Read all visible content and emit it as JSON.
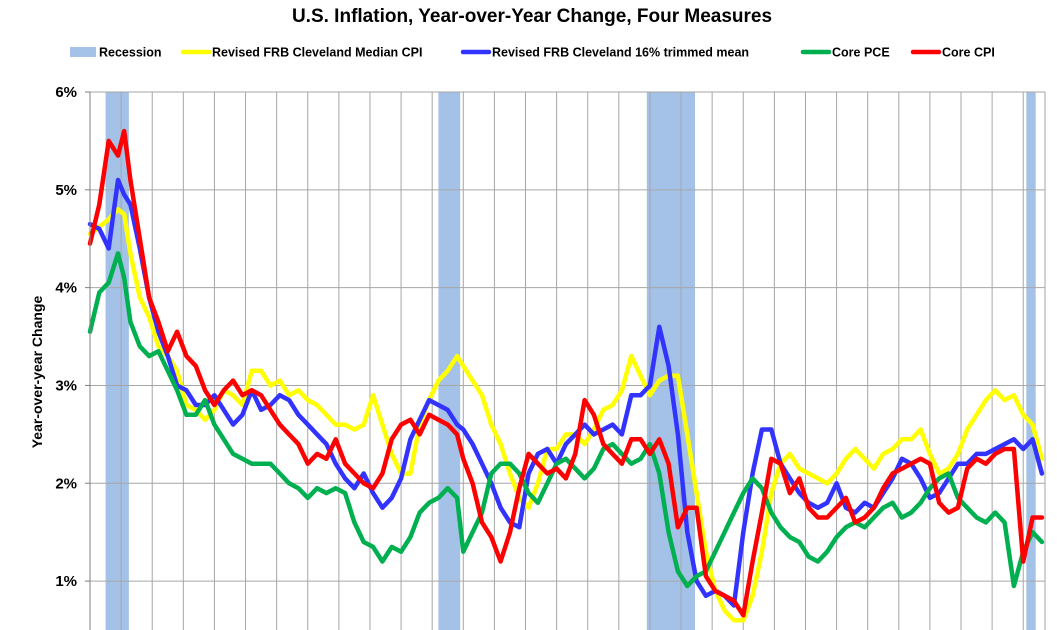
{
  "chart_data": {
    "type": "line",
    "title": "U.S. Inflation, Year-over-Year Change, Four Measures",
    "xlabel": "",
    "ylabel": "Year-over-year Change",
    "ylim": [
      0.5,
      6
    ],
    "xlim": [
      1990,
      2020.7
    ],
    "grid": true,
    "y_ticks": [
      1,
      2,
      3,
      4,
      5,
      6
    ],
    "y_tick_labels": [
      "1%",
      "2%",
      "3%",
      "4%",
      "5%",
      "6%"
    ],
    "x_grid_years": [
      1991,
      1992,
      1993,
      1994,
      1995,
      1996,
      1997,
      1998,
      1999,
      2000,
      2001,
      2002,
      2003,
      2004,
      2005,
      2006,
      2007,
      2008,
      2009,
      2010,
      2011,
      2012,
      2013,
      2014,
      2015,
      2016,
      2017,
      2018,
      2019,
      2020
    ],
    "recessions": [
      {
        "start": 1990.5,
        "end": 1991.25
      },
      {
        "start": 2001.2,
        "end": 2001.9
      },
      {
        "start": 2007.9,
        "end": 2009.45
      },
      {
        "start": 2020.1,
        "end": 2020.4
      }
    ],
    "legend": {
      "position": "top",
      "entries": [
        {
          "label": "Recession",
          "color": "#a4c2e8",
          "kind": "box"
        },
        {
          "label": "Revised FRB Cleveland Median CPI",
          "color": "#ffff00",
          "kind": "line"
        },
        {
          "label": "Revised FRB Cleveland 16% trimmed mean",
          "color": "#3333ff",
          "kind": "line"
        },
        {
          "label": "Core PCE",
          "color": "#00b050",
          "kind": "line"
        },
        {
          "label": "Core CPI",
          "color": "#ff0000",
          "kind": "line"
        }
      ]
    },
    "series": [
      {
        "name": "Revised FRB Cleveland Median CPI",
        "color": "#ffff00",
        "x": [
          1990.0,
          1990.3,
          1990.6,
          1990.9,
          1991.1,
          1991.3,
          1991.6,
          1991.9,
          1992.2,
          1992.5,
          1992.8,
          1993.1,
          1993.4,
          1993.7,
          1994.0,
          1994.3,
          1994.6,
          1994.9,
          1995.2,
          1995.5,
          1995.8,
          1996.1,
          1996.4,
          1996.7,
          1997.0,
          1997.3,
          1997.6,
          1997.9,
          1998.2,
          1998.5,
          1998.8,
          1999.1,
          1999.4,
          1999.7,
          2000.0,
          2000.3,
          2000.6,
          2000.9,
          2001.2,
          2001.5,
          2001.8,
          2002.0,
          2002.3,
          2002.6,
          2002.9,
          2003.2,
          2003.5,
          2003.8,
          2004.1,
          2004.4,
          2004.7,
          2005.0,
          2005.3,
          2005.6,
          2005.9,
          2006.2,
          2006.5,
          2006.8,
          2007.1,
          2007.4,
          2007.7,
          2008.0,
          2008.3,
          2008.6,
          2008.9,
          2009.2,
          2009.5,
          2009.8,
          2010.1,
          2010.4,
          2010.7,
          2011.0,
          2011.3,
          2011.6,
          2011.9,
          2012.2,
          2012.5,
          2012.8,
          2013.1,
          2013.4,
          2013.7,
          2014.0,
          2014.3,
          2014.6,
          2014.9,
          2015.2,
          2015.5,
          2015.8,
          2016.1,
          2016.4,
          2016.7,
          2017.0,
          2017.3,
          2017.6,
          2017.9,
          2018.2,
          2018.5,
          2018.8,
          2019.1,
          2019.4,
          2019.7,
          2020.0,
          2020.3,
          2020.6
        ],
        "values": [
          4.55,
          4.62,
          4.7,
          4.8,
          4.75,
          4.35,
          3.9,
          3.7,
          3.4,
          3.3,
          3.15,
          2.8,
          2.75,
          2.65,
          2.75,
          2.95,
          2.9,
          2.8,
          3.15,
          3.15,
          3.0,
          3.05,
          2.9,
          2.95,
          2.85,
          2.8,
          2.7,
          2.6,
          2.6,
          2.55,
          2.6,
          2.9,
          2.6,
          2.3,
          2.1,
          2.1,
          2.6,
          2.85,
          3.05,
          3.15,
          3.3,
          3.2,
          3.05,
          2.9,
          2.6,
          2.4,
          2.1,
          1.85,
          1.75,
          2.0,
          2.35,
          2.35,
          2.5,
          2.5,
          2.4,
          2.55,
          2.75,
          2.8,
          2.95,
          3.3,
          3.1,
          2.9,
          3.05,
          3.1,
          3.1,
          2.5,
          1.9,
          1.3,
          0.9,
          0.7,
          0.6,
          0.6,
          0.85,
          1.3,
          1.9,
          2.2,
          2.3,
          2.15,
          2.1,
          2.05,
          2.0,
          2.1,
          2.25,
          2.35,
          2.25,
          2.15,
          2.3,
          2.35,
          2.45,
          2.45,
          2.55,
          2.3,
          2.1,
          2.15,
          2.3,
          2.55,
          2.7,
          2.85,
          2.95,
          2.85,
          2.9,
          2.7,
          2.6,
          2.25
        ]
      },
      {
        "name": "Revised FRB Cleveland 16% trimmed mean",
        "color": "#3333ff",
        "x": [
          1990.0,
          1990.3,
          1990.6,
          1990.9,
          1991.1,
          1991.3,
          1991.6,
          1991.9,
          1992.2,
          1992.5,
          1992.8,
          1993.1,
          1993.4,
          1993.7,
          1994.0,
          1994.3,
          1994.6,
          1994.9,
          1995.2,
          1995.5,
          1995.8,
          1996.1,
          1996.4,
          1996.7,
          1997.0,
          1997.3,
          1997.6,
          1997.9,
          1998.2,
          1998.5,
          1998.8,
          1999.1,
          1999.4,
          1999.7,
          2000.0,
          2000.3,
          2000.6,
          2000.9,
          2001.2,
          2001.5,
          2001.8,
          2002.0,
          2002.3,
          2002.6,
          2002.9,
          2003.2,
          2003.5,
          2003.8,
          2004.1,
          2004.4,
          2004.7,
          2005.0,
          2005.3,
          2005.6,
          2005.9,
          2006.2,
          2006.5,
          2006.8,
          2007.1,
          2007.4,
          2007.7,
          2008.0,
          2008.3,
          2008.6,
          2008.9,
          2009.2,
          2009.5,
          2009.8,
          2010.1,
          2010.4,
          2010.7,
          2011.0,
          2011.3,
          2011.6,
          2011.9,
          2012.2,
          2012.5,
          2012.8,
          2013.1,
          2013.4,
          2013.7,
          2014.0,
          2014.3,
          2014.6,
          2014.9,
          2015.2,
          2015.5,
          2015.8,
          2016.1,
          2016.4,
          2016.7,
          2017.0,
          2017.3,
          2017.6,
          2017.9,
          2018.2,
          2018.5,
          2018.8,
          2019.1,
          2019.4,
          2019.7,
          2020.0,
          2020.3,
          2020.6
        ],
        "values": [
          4.65,
          4.6,
          4.4,
          5.1,
          4.95,
          4.85,
          4.4,
          3.9,
          3.55,
          3.3,
          3.0,
          2.95,
          2.8,
          2.8,
          2.9,
          2.75,
          2.6,
          2.7,
          2.95,
          2.75,
          2.8,
          2.9,
          2.85,
          2.7,
          2.6,
          2.5,
          2.4,
          2.2,
          2.05,
          1.95,
          2.1,
          1.9,
          1.75,
          1.85,
          2.05,
          2.45,
          2.65,
          2.85,
          2.8,
          2.75,
          2.6,
          2.55,
          2.4,
          2.2,
          2.0,
          1.75,
          1.6,
          1.55,
          2.1,
          2.3,
          2.35,
          2.2,
          2.4,
          2.5,
          2.6,
          2.5,
          2.55,
          2.6,
          2.5,
          2.9,
          2.9,
          3.0,
          3.6,
          3.2,
          2.5,
          1.5,
          1.0,
          0.85,
          0.9,
          0.85,
          0.75,
          1.5,
          2.1,
          2.55,
          2.55,
          2.2,
          2.05,
          1.9,
          1.8,
          1.75,
          1.8,
          2.0,
          1.75,
          1.7,
          1.8,
          1.75,
          1.9,
          2.05,
          2.25,
          2.2,
          2.05,
          1.85,
          1.9,
          2.05,
          2.2,
          2.2,
          2.3,
          2.3,
          2.35,
          2.4,
          2.45,
          2.35,
          2.45,
          2.1
        ]
      },
      {
        "name": "Core PCE",
        "color": "#00b050",
        "x": [
          1990.0,
          1990.3,
          1990.6,
          1990.9,
          1991.1,
          1991.3,
          1991.6,
          1991.9,
          1992.2,
          1992.5,
          1992.8,
          1993.1,
          1993.4,
          1993.7,
          1994.0,
          1994.3,
          1994.6,
          1994.9,
          1995.2,
          1995.5,
          1995.8,
          1996.1,
          1996.4,
          1996.7,
          1997.0,
          1997.3,
          1997.6,
          1997.9,
          1998.2,
          1998.5,
          1998.8,
          1999.1,
          1999.4,
          1999.7,
          2000.0,
          2000.3,
          2000.6,
          2000.9,
          2001.2,
          2001.5,
          2001.8,
          2002.0,
          2002.3,
          2002.6,
          2002.9,
          2003.2,
          2003.5,
          2003.8,
          2004.1,
          2004.4,
          2004.7,
          2005.0,
          2005.3,
          2005.6,
          2005.9,
          2006.2,
          2006.5,
          2006.8,
          2007.1,
          2007.4,
          2007.7,
          2008.0,
          2008.3,
          2008.6,
          2008.9,
          2009.2,
          2009.5,
          2009.8,
          2010.1,
          2010.4,
          2010.7,
          2011.0,
          2011.3,
          2011.6,
          2011.9,
          2012.2,
          2012.5,
          2012.8,
          2013.1,
          2013.4,
          2013.7,
          2014.0,
          2014.3,
          2014.6,
          2014.9,
          2015.2,
          2015.5,
          2015.8,
          2016.1,
          2016.4,
          2016.7,
          2017.0,
          2017.3,
          2017.6,
          2017.9,
          2018.2,
          2018.5,
          2018.8,
          2019.1,
          2019.4,
          2019.7,
          2020.0,
          2020.3,
          2020.6
        ],
        "values": [
          3.55,
          3.95,
          4.05,
          4.35,
          4.1,
          3.65,
          3.4,
          3.3,
          3.35,
          3.15,
          2.95,
          2.7,
          2.7,
          2.85,
          2.6,
          2.45,
          2.3,
          2.25,
          2.2,
          2.2,
          2.2,
          2.1,
          2.0,
          1.95,
          1.85,
          1.95,
          1.9,
          1.95,
          1.9,
          1.6,
          1.4,
          1.35,
          1.2,
          1.35,
          1.3,
          1.45,
          1.7,
          1.8,
          1.85,
          1.95,
          1.85,
          1.3,
          1.5,
          1.7,
          2.1,
          2.2,
          2.2,
          2.1,
          1.9,
          1.8,
          2.0,
          2.2,
          2.25,
          2.15,
          2.05,
          2.15,
          2.35,
          2.4,
          2.3,
          2.2,
          2.25,
          2.4,
          2.1,
          1.5,
          1.1,
          0.95,
          1.05,
          1.1,
          1.3,
          1.5,
          1.7,
          1.9,
          2.05,
          1.95,
          1.7,
          1.55,
          1.45,
          1.4,
          1.25,
          1.2,
          1.3,
          1.45,
          1.55,
          1.6,
          1.55,
          1.65,
          1.75,
          1.8,
          1.65,
          1.7,
          1.8,
          1.95,
          2.05,
          2.1,
          1.85,
          1.75,
          1.65,
          1.6,
          1.7,
          1.6,
          0.95,
          1.3,
          1.5,
          1.4
        ]
      },
      {
        "name": "Core CPI",
        "color": "#ff0000",
        "x": [
          1990.0,
          1990.3,
          1990.6,
          1990.9,
          1991.1,
          1991.3,
          1991.6,
          1991.9,
          1992.2,
          1992.5,
          1992.8,
          1993.1,
          1993.4,
          1993.7,
          1994.0,
          1994.3,
          1994.6,
          1994.9,
          1995.2,
          1995.5,
          1995.8,
          1996.1,
          1996.4,
          1996.7,
          1997.0,
          1997.3,
          1997.6,
          1997.9,
          1998.2,
          1998.5,
          1998.8,
          1999.1,
          1999.4,
          1999.7,
          2000.0,
          2000.3,
          2000.6,
          2000.9,
          2001.2,
          2001.5,
          2001.8,
          2002.0,
          2002.3,
          2002.6,
          2002.9,
          2003.2,
          2003.5,
          2003.8,
          2004.1,
          2004.4,
          2004.7,
          2005.0,
          2005.3,
          2005.6,
          2005.9,
          2006.2,
          2006.5,
          2006.8,
          2007.1,
          2007.4,
          2007.7,
          2008.0,
          2008.3,
          2008.6,
          2008.9,
          2009.2,
          2009.5,
          2009.8,
          2010.1,
          2010.4,
          2010.7,
          2011.0,
          2011.3,
          2011.6,
          2011.9,
          2012.2,
          2012.5,
          2012.8,
          2013.1,
          2013.4,
          2013.7,
          2014.0,
          2014.3,
          2014.6,
          2014.9,
          2015.2,
          2015.5,
          2015.8,
          2016.1,
          2016.4,
          2016.7,
          2017.0,
          2017.3,
          2017.6,
          2017.9,
          2018.2,
          2018.5,
          2018.8,
          2019.1,
          2019.4,
          2019.7,
          2020.0,
          2020.3,
          2020.6
        ],
        "values": [
          4.45,
          4.85,
          5.5,
          5.35,
          5.6,
          5.1,
          4.5,
          3.9,
          3.65,
          3.35,
          3.55,
          3.3,
          3.2,
          2.95,
          2.8,
          2.95,
          3.05,
          2.9,
          2.95,
          2.9,
          2.75,
          2.6,
          2.5,
          2.4,
          2.2,
          2.3,
          2.25,
          2.45,
          2.2,
          2.1,
          2.0,
          1.95,
          2.1,
          2.45,
          2.6,
          2.65,
          2.5,
          2.7,
          2.65,
          2.6,
          2.5,
          2.25,
          2.0,
          1.6,
          1.45,
          1.2,
          1.5,
          1.95,
          2.3,
          2.2,
          2.1,
          2.15,
          2.05,
          2.3,
          2.85,
          2.7,
          2.4,
          2.3,
          2.2,
          2.45,
          2.45,
          2.3,
          2.45,
          2.2,
          1.55,
          1.75,
          1.75,
          1.05,
          0.9,
          0.85,
          0.8,
          0.65,
          1.2,
          1.7,
          2.25,
          2.2,
          1.9,
          2.05,
          1.75,
          1.65,
          1.65,
          1.75,
          1.85,
          1.6,
          1.65,
          1.75,
          1.95,
          2.1,
          2.15,
          2.2,
          2.25,
          2.2,
          1.8,
          1.7,
          1.75,
          2.15,
          2.25,
          2.2,
          2.3,
          2.35,
          2.35,
          1.2,
          1.65,
          1.65
        ]
      }
    ]
  }
}
